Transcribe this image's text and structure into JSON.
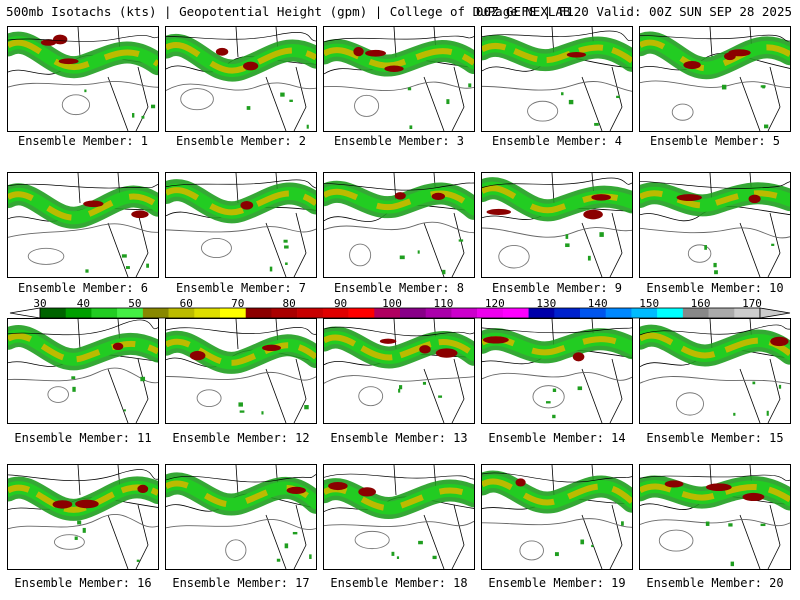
{
  "header": {
    "left": "500mb Isotachs (kts) | Geopotential Height (gpm) | College of DuPage NEXLAB",
    "right": "00Z GEFS | F120 Valid: 00Z SUN SEP 28 2025"
  },
  "caption_prefix": "Ensemble Member:",
  "members": [
    {
      "id": "1",
      "label": "Ensemble Member: 1"
    },
    {
      "id": "2",
      "label": "Ensemble Member: 2"
    },
    {
      "id": "3",
      "label": "Ensemble Member: 3"
    },
    {
      "id": "4",
      "label": "Ensemble Member: 4"
    },
    {
      "id": "5",
      "label": "Ensemble Member: 5"
    },
    {
      "id": "6",
      "label": "Ensemble Member: 6"
    },
    {
      "id": "7",
      "label": "Ensemble Member: 7"
    },
    {
      "id": "8",
      "label": "Ensemble Member: 8"
    },
    {
      "id": "9",
      "label": "Ensemble Member: 9"
    },
    {
      "id": "10",
      "label": "Ensemble Member: 10"
    },
    {
      "id": "11",
      "label": "Ensemble Member: 11"
    },
    {
      "id": "12",
      "label": "Ensemble Member: 12"
    },
    {
      "id": "13",
      "label": "Ensemble Member: 13"
    },
    {
      "id": "14",
      "label": "Ensemble Member: 14"
    },
    {
      "id": "15",
      "label": "Ensemble Member: 15"
    },
    {
      "id": "16",
      "label": "Ensemble Member: 16"
    },
    {
      "id": "17",
      "label": "Ensemble Member: 17"
    },
    {
      "id": "18",
      "label": "Ensemble Member: 18"
    },
    {
      "id": "19",
      "label": "Ensemble Member: 19"
    },
    {
      "id": "20",
      "label": "Ensemble Member: 20"
    }
  ],
  "colorbar": {
    "units": "kts",
    "tick_labels": [
      "30",
      "40",
      "50",
      "60",
      "70",
      "80",
      "90",
      "100",
      "110",
      "120",
      "130",
      "140",
      "150",
      "160",
      "170"
    ],
    "colors": [
      "#006400",
      "#00a000",
      "#22cc22",
      "#44ee44",
      "#888800",
      "#bbbb00",
      "#dddd00",
      "#ffff00",
      "#8b0000",
      "#aa0000",
      "#c80000",
      "#e00000",
      "#ff0000",
      "#b00060",
      "#880088",
      "#aa00aa",
      "#cc00cc",
      "#ee00ee",
      "#ff00ff",
      "#0000aa",
      "#0022cc",
      "#0055ee",
      "#0088ff",
      "#00bbff",
      "#00ffff",
      "#888888",
      "#aaaaaa",
      "#cccccc"
    ]
  }
}
